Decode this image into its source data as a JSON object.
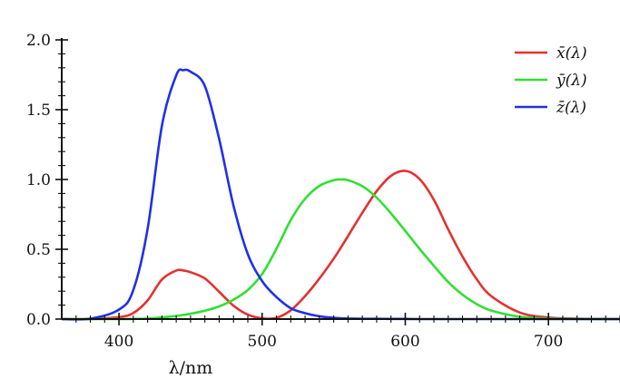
{
  "chart_data": {
    "type": "line",
    "title": "",
    "xlabel": "λ/nm",
    "ylabel": "",
    "xlim": [
      360,
      750
    ],
    "ylim": [
      0,
      2.0
    ],
    "x_ticks": [
      400,
      500,
      600,
      700
    ],
    "x_tick_labels": [
      "400",
      "500",
      "600",
      "700"
    ],
    "y_ticks": [
      0,
      0.5,
      1.0,
      1.5,
      2.0
    ],
    "y_tick_labels": [
      "0.0",
      "0.5",
      "1.0",
      "1.5",
      "2.0"
    ],
    "grid": false,
    "legend_position": "top-right",
    "x": [
      360,
      380,
      400,
      410,
      420,
      430,
      440,
      445,
      450,
      460,
      470,
      480,
      490,
      500,
      510,
      520,
      530,
      540,
      550,
      555,
      560,
      570,
      580,
      590,
      600,
      610,
      620,
      630,
      640,
      650,
      660,
      680,
      700,
      720,
      750
    ],
    "series": [
      {
        "name": "x̄(λ)",
        "color": "#e53030",
        "values": [
          0.0,
          0.0,
          0.014,
          0.043,
          0.134,
          0.284,
          0.348,
          0.348,
          0.336,
          0.291,
          0.195,
          0.096,
          0.032,
          0.005,
          0.009,
          0.063,
          0.165,
          0.29,
          0.433,
          0.512,
          0.595,
          0.762,
          0.916,
          1.026,
          1.062,
          1.003,
          0.854,
          0.642,
          0.448,
          0.284,
          0.165,
          0.047,
          0.011,
          0.003,
          0.0
        ]
      },
      {
        "name": "ȳ(λ)",
        "color": "#30e030",
        "values": [
          0.0,
          0.0,
          0.0004,
          0.0012,
          0.004,
          0.012,
          0.023,
          0.03,
          0.038,
          0.06,
          0.091,
          0.139,
          0.208,
          0.323,
          0.503,
          0.71,
          0.862,
          0.954,
          0.995,
          1.0,
          0.995,
          0.952,
          0.87,
          0.757,
          0.631,
          0.503,
          0.381,
          0.265,
          0.175,
          0.107,
          0.061,
          0.017,
          0.004,
          0.001,
          0.0
        ]
      },
      {
        "name": "z̄(λ)",
        "color": "#2030e8",
        "values": [
          0.0,
          0.003,
          0.068,
          0.207,
          0.646,
          1.386,
          1.747,
          1.783,
          1.772,
          1.669,
          1.288,
          0.813,
          0.465,
          0.272,
          0.158,
          0.078,
          0.042,
          0.02,
          0.009,
          0.006,
          0.004,
          0.002,
          0.002,
          0.001,
          0.001,
          0.0,
          0.0,
          0.0,
          0.0,
          0.0,
          0.0,
          0.0,
          0.0,
          0.0,
          0.0
        ]
      }
    ]
  }
}
